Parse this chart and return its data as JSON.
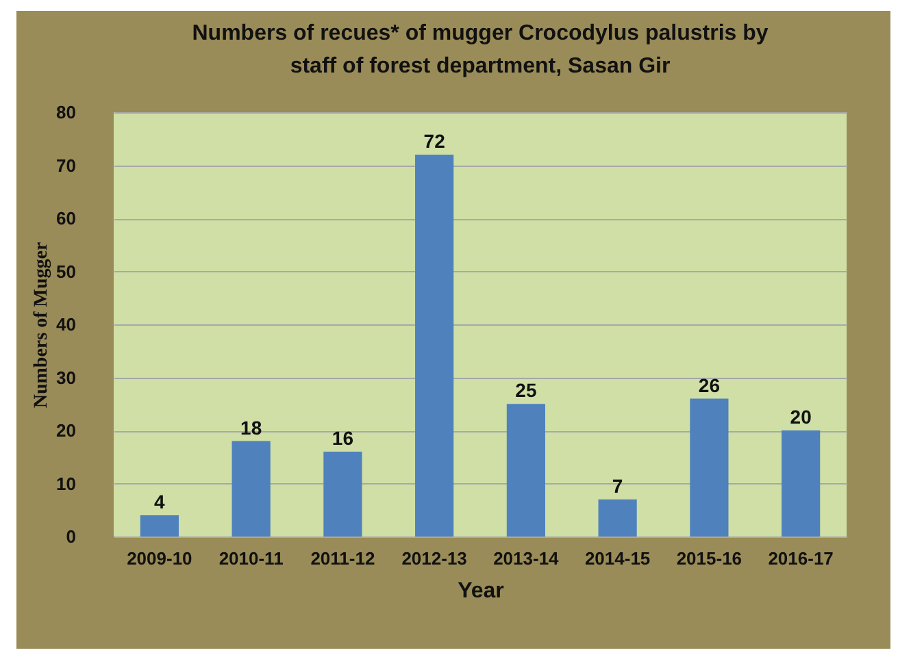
{
  "chart_data": {
    "type": "bar",
    "title": "Numbers  of recues* of mugger Crocodylus palustris  by staff of  forest department, Sasan Gir",
    "xlabel": "Year",
    "ylabel": "Numbers of Mugger",
    "categories": [
      "2009-10",
      "2010-11",
      "2011-12",
      "2012-13",
      "2013-14",
      "2014-15",
      "2015-16",
      "2016-17"
    ],
    "values": [
      4,
      18,
      16,
      72,
      25,
      7,
      26,
      20
    ],
    "color": "#4f81bd",
    "ylim": [
      0,
      80
    ],
    "yticks": [
      0,
      10,
      20,
      30,
      40,
      50,
      60,
      70,
      80
    ],
    "grid": "y",
    "data_labels": true
  }
}
